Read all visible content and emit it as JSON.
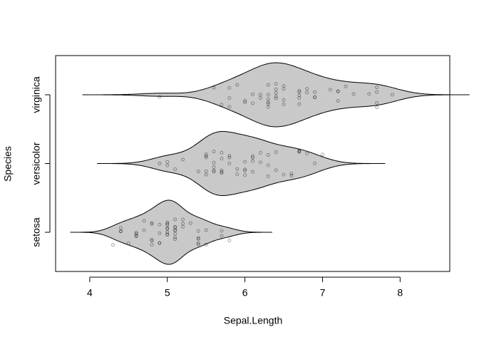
{
  "chart_data": {
    "type": "violin",
    "x_label": "Sepal.Length",
    "y_label": "Species",
    "categories": [
      "setosa",
      "versicolor",
      "virginica"
    ],
    "values": [
      [
        5.1,
        4.9,
        4.7,
        4.6,
        5.0,
        5.4,
        4.6,
        5.0,
        4.4,
        4.9,
        5.4,
        4.8,
        4.8,
        4.3,
        5.8,
        5.7,
        5.4,
        5.1,
        5.7,
        5.1,
        5.4,
        5.1,
        4.6,
        5.1,
        4.8,
        5.0,
        5.0,
        5.2,
        5.2,
        4.7,
        4.8,
        5.4,
        5.2,
        5.5,
        4.9,
        5.0,
        5.5,
        4.9,
        4.4,
        5.1,
        5.0,
        4.5,
        4.4,
        5.0,
        5.1,
        4.8,
        5.1,
        4.6,
        5.3,
        5.0
      ],
      [
        7.0,
        6.4,
        6.9,
        5.5,
        6.5,
        5.7,
        6.3,
        4.9,
        6.6,
        5.2,
        5.0,
        5.9,
        6.0,
        6.1,
        5.6,
        6.7,
        5.6,
        5.8,
        6.2,
        5.6,
        5.9,
        6.1,
        6.3,
        6.1,
        6.4,
        6.6,
        6.8,
        6.7,
        6.0,
        5.7,
        5.5,
        5.5,
        5.8,
        6.0,
        5.4,
        6.0,
        6.7,
        6.3,
        5.6,
        5.5,
        5.5,
        6.1,
        5.8,
        5.0,
        5.6,
        5.7,
        5.7,
        6.2,
        5.1,
        5.7
      ],
      [
        6.3,
        5.8,
        7.1,
        6.3,
        6.5,
        7.6,
        4.9,
        7.3,
        6.7,
        7.2,
        6.5,
        6.4,
        6.8,
        5.7,
        5.8,
        6.4,
        6.5,
        7.7,
        7.7,
        6.0,
        6.9,
        5.6,
        7.7,
        6.3,
        6.7,
        7.2,
        6.2,
        6.1,
        6.4,
        7.2,
        7.4,
        7.9,
        6.4,
        6.3,
        6.1,
        7.7,
        6.3,
        6.4,
        6.0,
        6.9,
        6.7,
        6.9,
        5.8,
        6.8,
        6.7,
        6.7,
        6.3,
        6.5,
        6.2,
        5.9
      ]
    ],
    "color": "#c9c9c9",
    "xlim": [
      3.56,
      8.64
    ],
    "xticks": [
      4,
      5,
      6,
      7,
      8
    ]
  }
}
